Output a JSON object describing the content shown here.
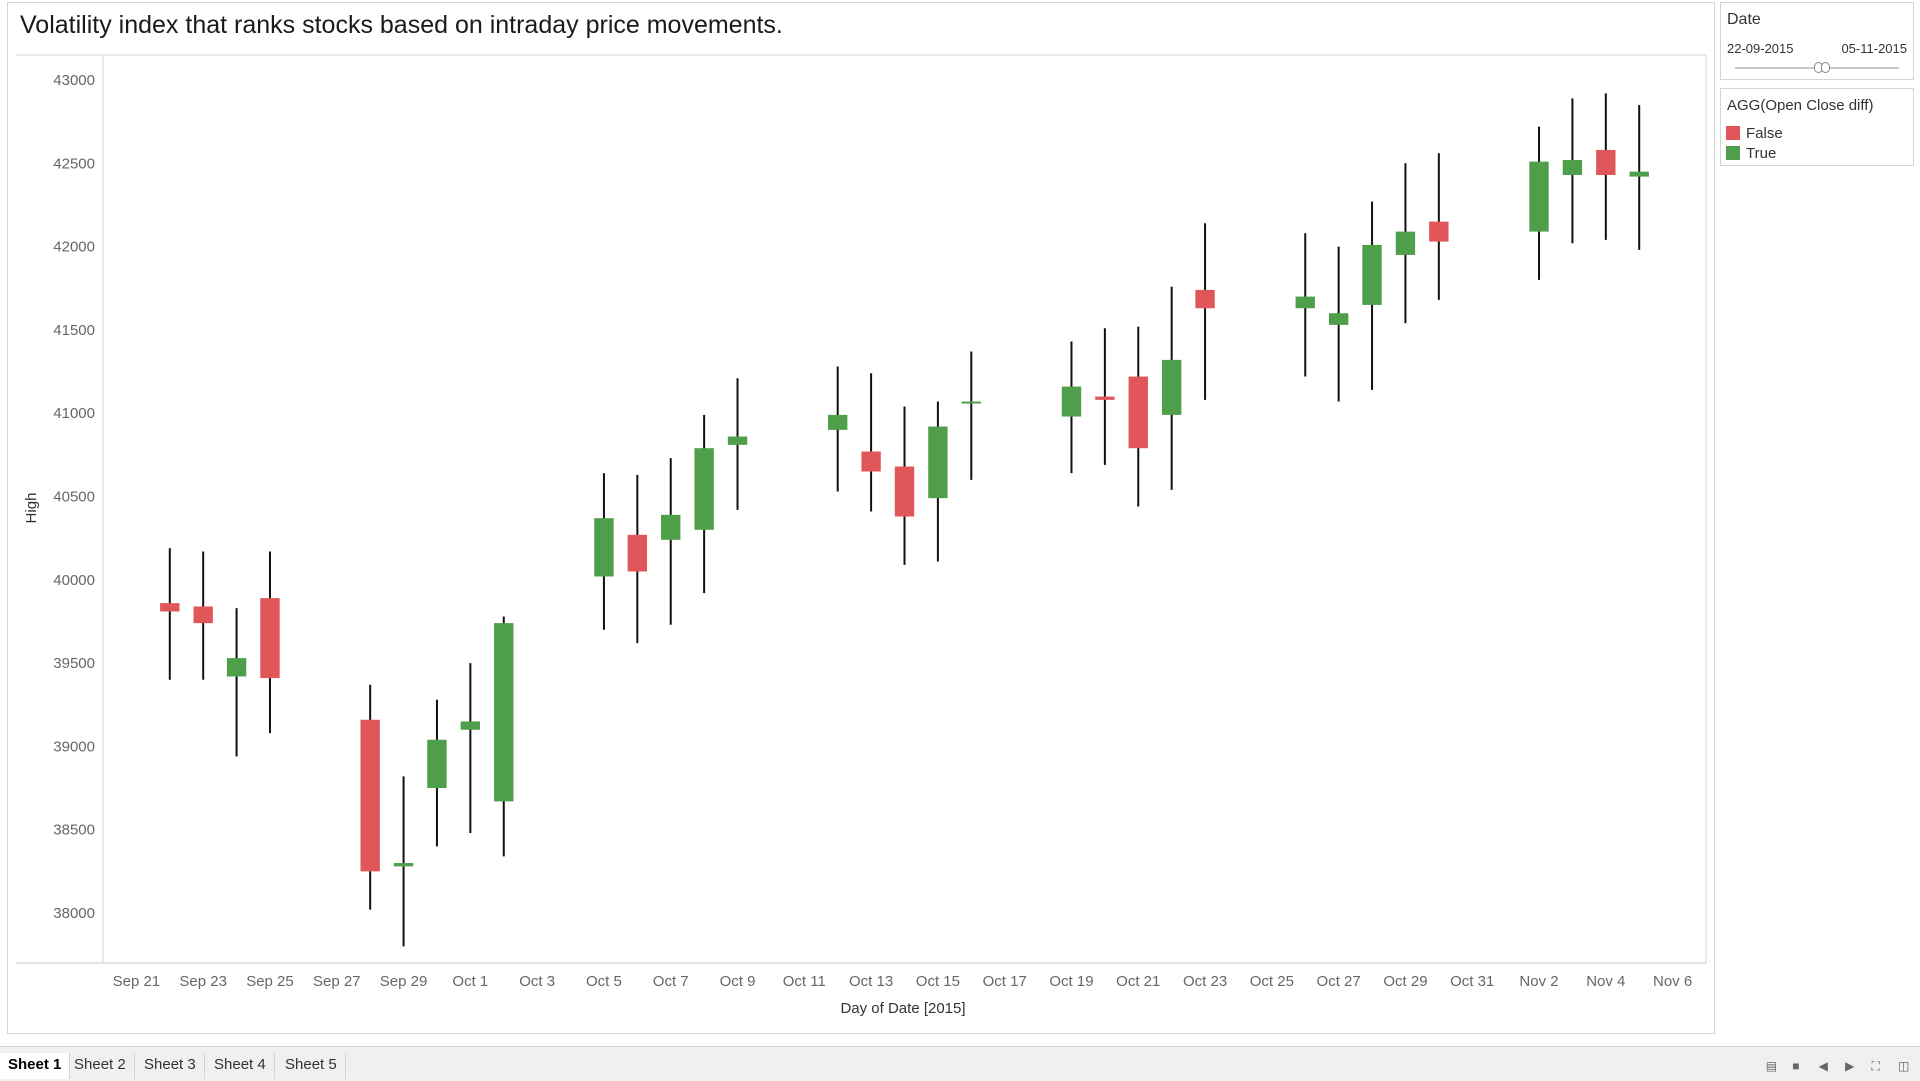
{
  "title": "Volatility index that ranks stocks based on intraday price movements.",
  "date_filter": {
    "label": "Date",
    "start": "22-09-2015",
    "end": "05-11-2015"
  },
  "legend": {
    "title": "AGG(Open Close diff)",
    "items": [
      {
        "label": "False",
        "color": "#e05659"
      },
      {
        "label": "True",
        "color": "#4f9e4a"
      }
    ]
  },
  "sheet_tabs": [
    "Sheet 1",
    "Sheet 2",
    "Sheet 3",
    "Sheet 4",
    "Sheet 5"
  ],
  "active_sheet": "Sheet 1",
  "chart_data": {
    "type": "candlestick",
    "xlabel": "Day of Date [2015]",
    "ylabel": "High",
    "ylim": [
      37700,
      43150
    ],
    "yticks": [
      38000,
      38500,
      39000,
      39500,
      40000,
      40500,
      41000,
      41500,
      42000,
      42500,
      43000
    ],
    "xlim": [
      "2015-09-20",
      "2015-11-07"
    ],
    "xticks": [
      {
        "date": "2015-09-21",
        "label": "Sep 21"
      },
      {
        "date": "2015-09-23",
        "label": "Sep 23"
      },
      {
        "date": "2015-09-25",
        "label": "Sep 25"
      },
      {
        "date": "2015-09-27",
        "label": "Sep 27"
      },
      {
        "date": "2015-09-29",
        "label": "Sep 29"
      },
      {
        "date": "2015-10-01",
        "label": "Oct 1"
      },
      {
        "date": "2015-10-03",
        "label": "Oct 3"
      },
      {
        "date": "2015-10-05",
        "label": "Oct 5"
      },
      {
        "date": "2015-10-07",
        "label": "Oct 7"
      },
      {
        "date": "2015-10-09",
        "label": "Oct 9"
      },
      {
        "date": "2015-10-11",
        "label": "Oct 11"
      },
      {
        "date": "2015-10-13",
        "label": "Oct 13"
      },
      {
        "date": "2015-10-15",
        "label": "Oct 15"
      },
      {
        "date": "2015-10-17",
        "label": "Oct 17"
      },
      {
        "date": "2015-10-19",
        "label": "Oct 19"
      },
      {
        "date": "2015-10-21",
        "label": "Oct 21"
      },
      {
        "date": "2015-10-23",
        "label": "Oct 23"
      },
      {
        "date": "2015-10-25",
        "label": "Oct 25"
      },
      {
        "date": "2015-10-27",
        "label": "Oct 27"
      },
      {
        "date": "2015-10-29",
        "label": "Oct 29"
      },
      {
        "date": "2015-10-31",
        "label": "Oct 31"
      },
      {
        "date": "2015-11-02",
        "label": "Nov 2"
      },
      {
        "date": "2015-11-04",
        "label": "Nov 4"
      },
      {
        "date": "2015-11-06",
        "label": "Nov 6"
      }
    ],
    "colors": {
      "False": "#e05659",
      "True": "#4f9e4a"
    },
    "candles": [
      {
        "date": "2015-09-22",
        "open": 39860,
        "close": 39810,
        "high": 40190,
        "low": 39400,
        "up": false
      },
      {
        "date": "2015-09-23",
        "open": 39840,
        "close": 39740,
        "high": 40170,
        "low": 39400,
        "up": false
      },
      {
        "date": "2015-09-24",
        "open": 39420,
        "close": 39530,
        "high": 39830,
        "low": 38940,
        "up": true
      },
      {
        "date": "2015-09-25",
        "open": 39890,
        "close": 39410,
        "high": 40170,
        "low": 39080,
        "up": false
      },
      {
        "date": "2015-09-28",
        "open": 39160,
        "close": 38250,
        "high": 39370,
        "low": 38020,
        "up": false
      },
      {
        "date": "2015-09-29",
        "open": 38280,
        "close": 38300,
        "high": 38820,
        "low": 37800,
        "up": true
      },
      {
        "date": "2015-09-30",
        "open": 38750,
        "close": 39040,
        "high": 39280,
        "low": 38400,
        "up": true
      },
      {
        "date": "2015-10-01",
        "open": 39100,
        "close": 39150,
        "high": 39500,
        "low": 38480,
        "up": true
      },
      {
        "date": "2015-10-02",
        "open": 38670,
        "close": 39740,
        "high": 39780,
        "low": 38340,
        "up": true
      },
      {
        "date": "2015-10-05",
        "open": 40020,
        "close": 40370,
        "high": 40640,
        "low": 39700,
        "up": true
      },
      {
        "date": "2015-10-06",
        "open": 40270,
        "close": 40050,
        "high": 40630,
        "low": 39620,
        "up": false
      },
      {
        "date": "2015-10-07",
        "open": 40240,
        "close": 40390,
        "high": 40730,
        "low": 39730,
        "up": true
      },
      {
        "date": "2015-10-08",
        "open": 40300,
        "close": 40790,
        "high": 40990,
        "low": 39920,
        "up": true
      },
      {
        "date": "2015-10-09",
        "open": 40810,
        "close": 40860,
        "high": 41210,
        "low": 40420,
        "up": true
      },
      {
        "date": "2015-10-12",
        "open": 40900,
        "close": 40990,
        "high": 41280,
        "low": 40530,
        "up": true
      },
      {
        "date": "2015-10-13",
        "open": 40770,
        "close": 40650,
        "high": 41240,
        "low": 40410,
        "up": false
      },
      {
        "date": "2015-10-14",
        "open": 40680,
        "close": 40380,
        "high": 41040,
        "low": 40090,
        "up": false
      },
      {
        "date": "2015-10-15",
        "open": 40490,
        "close": 40920,
        "high": 41070,
        "low": 40110,
        "up": true
      },
      {
        "date": "2015-10-16",
        "open": 41060,
        "close": 41070,
        "high": 41370,
        "low": 40600,
        "up": true
      },
      {
        "date": "2015-10-19",
        "open": 40980,
        "close": 41160,
        "high": 41430,
        "low": 40640,
        "up": true
      },
      {
        "date": "2015-10-20",
        "open": 41100,
        "close": 41080,
        "high": 41510,
        "low": 40690,
        "up": false
      },
      {
        "date": "2015-10-21",
        "open": 41220,
        "close": 40790,
        "high": 41520,
        "low": 40440,
        "up": false
      },
      {
        "date": "2015-10-22",
        "open": 40990,
        "close": 41320,
        "high": 41760,
        "low": 40540,
        "up": true
      },
      {
        "date": "2015-10-23",
        "open": 41740,
        "close": 41630,
        "high": 42140,
        "low": 41080,
        "up": false
      },
      {
        "date": "2015-10-26",
        "open": 41630,
        "close": 41700,
        "high": 42080,
        "low": 41220,
        "up": true
      },
      {
        "date": "2015-10-27",
        "open": 41530,
        "close": 41600,
        "high": 42000,
        "low": 41070,
        "up": true
      },
      {
        "date": "2015-10-28",
        "open": 41650,
        "close": 42010,
        "high": 42270,
        "low": 41140,
        "up": true
      },
      {
        "date": "2015-10-29",
        "open": 41950,
        "close": 42090,
        "high": 42500,
        "low": 41540,
        "up": true
      },
      {
        "date": "2015-10-30",
        "open": 42150,
        "close": 42030,
        "high": 42560,
        "low": 41680,
        "up": false
      },
      {
        "date": "2015-11-02",
        "open": 42090,
        "close": 42510,
        "high": 42720,
        "low": 41800,
        "up": true
      },
      {
        "date": "2015-11-03",
        "open": 42430,
        "close": 42520,
        "high": 42890,
        "low": 42020,
        "up": true
      },
      {
        "date": "2015-11-04",
        "open": 42580,
        "close": 42430,
        "high": 42920,
        "low": 42040,
        "up": false
      },
      {
        "date": "2015-11-05",
        "open": 42420,
        "close": 42450,
        "high": 42850,
        "low": 41980,
        "up": true
      }
    ]
  }
}
